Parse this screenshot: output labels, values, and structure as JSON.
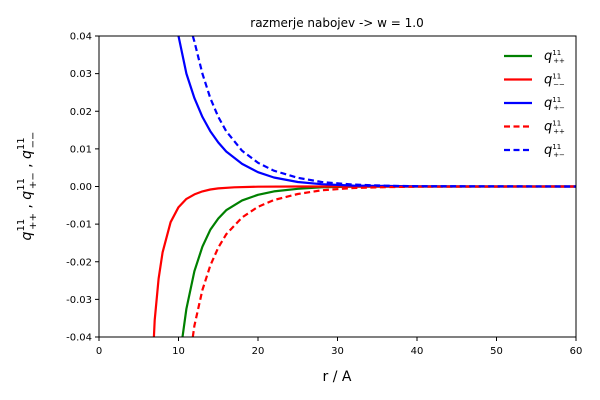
{
  "chart_data": {
    "type": "line",
    "title": "razmerje nabojev -> w = 1.0",
    "xlabel": "r / A",
    "ylabel": {
      "base": "q",
      "sup": "11",
      "parts": [
        "++",
        "+−",
        "−−"
      ]
    },
    "xlim": [
      0,
      60
    ],
    "ylim": [
      -0.04,
      0.04
    ],
    "xticks": [
      "0",
      "10",
      "20",
      "30",
      "40",
      "50",
      "60"
    ],
    "yticks": [
      "-0.04",
      "-0.03",
      "-0.02",
      "-0.01",
      "0.00",
      "0.01",
      "0.02",
      "0.03",
      "0.04"
    ],
    "grid": false,
    "legend_position": "top-right",
    "series": [
      {
        "name": "q11++",
        "sub": "++",
        "color": "#008000",
        "dash": "solid",
        "x": [
          10.5,
          11,
          12,
          13,
          14,
          15,
          16,
          18,
          20,
          22,
          25,
          28,
          32,
          40,
          60
        ],
        "y": [
          -0.04,
          -0.0325,
          -0.0225,
          -0.016,
          -0.0115,
          -0.0085,
          -0.0063,
          -0.0037,
          -0.0022,
          -0.0013,
          -0.0006,
          -0.0002,
          -5e-05,
          0,
          0
        ]
      },
      {
        "name": "q11−−",
        "sub": "−−",
        "color": "#ff0000",
        "dash": "solid",
        "x": [
          6.9,
          7,
          7.5,
          8,
          9,
          10,
          11,
          12,
          13,
          14,
          15,
          17,
          20,
          25,
          60
        ],
        "y": [
          -0.04,
          -0.0355,
          -0.0245,
          -0.0175,
          -0.0095,
          -0.0055,
          -0.0033,
          -0.0021,
          -0.0013,
          -0.0008,
          -0.0005,
          -0.0002,
          -5e-05,
          0,
          0
        ]
      },
      {
        "name": "q11+−",
        "sub": "+−",
        "color": "#0000ff",
        "dash": "solid",
        "x": [
          10,
          11,
          12,
          13,
          14,
          15,
          16,
          18,
          20,
          22,
          25,
          28,
          32,
          40,
          60
        ],
        "y": [
          0.04,
          0.03,
          0.0235,
          0.0185,
          0.0147,
          0.0117,
          0.0093,
          0.006,
          0.0038,
          0.0024,
          0.0012,
          0.0006,
          0.00025,
          5e-05,
          0
        ]
      },
      {
        "name": "q11++ ",
        "sub": "++",
        "color": "#ff0000",
        "dash": "dashed",
        "x": [
          11.8,
          12,
          13,
          14,
          15,
          16,
          18,
          20,
          22,
          25,
          28,
          32,
          36,
          40,
          60
        ],
        "y": [
          -0.04,
          -0.037,
          -0.0275,
          -0.021,
          -0.0162,
          -0.0127,
          -0.0082,
          -0.0054,
          -0.0036,
          -0.002,
          -0.001,
          -0.0004,
          -0.00015,
          -5e-05,
          0
        ]
      },
      {
        "name": "q11+− ",
        "sub": "+−",
        "color": "#0000ff",
        "dash": "dashed",
        "x": [
          11.8,
          12,
          13,
          14,
          15,
          16,
          18,
          20,
          22,
          25,
          28,
          32,
          36,
          40,
          60
        ],
        "y": [
          0.04,
          0.0385,
          0.03,
          0.0235,
          0.0185,
          0.0147,
          0.0095,
          0.0063,
          0.0042,
          0.0023,
          0.0012,
          0.0005,
          0.0002,
          7e-05,
          0
        ]
      }
    ]
  }
}
